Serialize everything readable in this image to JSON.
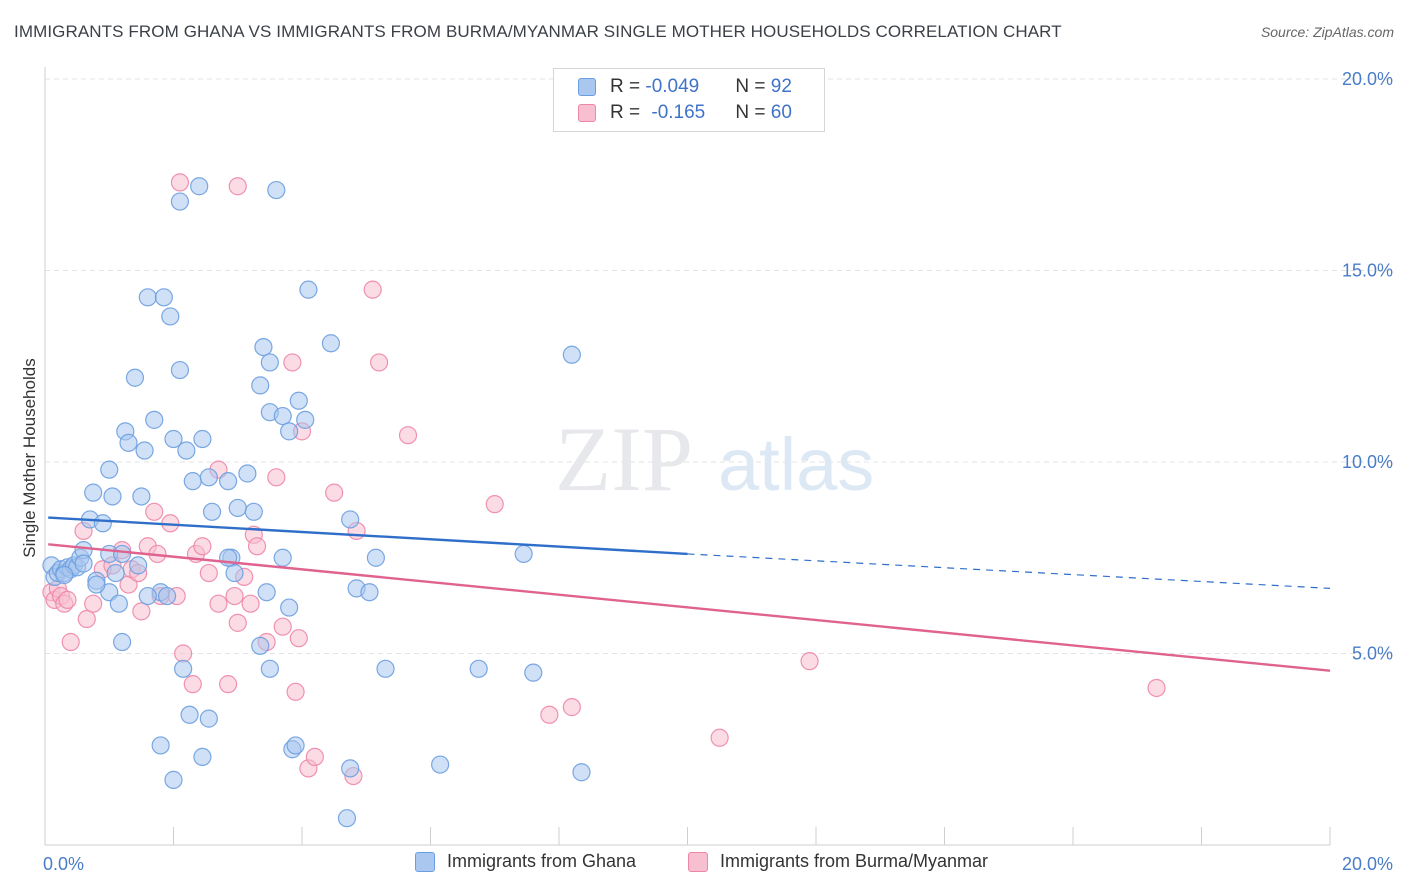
{
  "title": "IMMIGRANTS FROM GHANA VS IMMIGRANTS FROM BURMA/MYANMAR SINGLE MOTHER HOUSEHOLDS CORRELATION CHART",
  "source": "Source: ZipAtlas.com",
  "watermark": {
    "zip": "ZIP",
    "atlas": "atlas"
  },
  "legend_top": [
    {
      "r_label": "R = ",
      "r_value": "-0.049",
      "n_label": "N = ",
      "n_value": "92"
    },
    {
      "r_label": "R = ",
      "r_value": "-0.165",
      "n_label": "N = ",
      "n_value": "60"
    }
  ],
  "chart_data": {
    "type": "scatter",
    "title": "IMMIGRANTS FROM GHANA VS IMMIGRANTS FROM BURMA/MYANMAR SINGLE MOTHER HOUSEHOLDS CORRELATION CHART",
    "xlabel": "",
    "ylabel": "Single Mother Households",
    "xlim": [
      0,
      20
    ],
    "ylim": [
      0,
      20
    ],
    "x_tick_labels": [
      "0.0%",
      "20.0%"
    ],
    "y_ticks": [
      5,
      10,
      15,
      20
    ],
    "y_tick_labels": [
      "5.0%",
      "10.0%",
      "15.0%",
      "20.0%"
    ],
    "grid": true,
    "legend_position": "bottom",
    "series": [
      {
        "name": "Immigrants from Ghana",
        "color": "#6b9ee0",
        "fill": "#a9c7ef",
        "r": -0.049,
        "n": 92,
        "trend": {
          "x0": 0.05,
          "y0": 8.55,
          "x1": 10.0,
          "y1": 7.6,
          "dashed_to_x": 20.0,
          "dashed_to_y": 6.7,
          "color": "#2f6fc9"
        },
        "points": [
          [
            0.1,
            7.3
          ],
          [
            0.15,
            7.0
          ],
          [
            0.2,
            7.1
          ],
          [
            0.25,
            7.2
          ],
          [
            0.3,
            7.1
          ],
          [
            0.35,
            7.25
          ],
          [
            0.4,
            7.2
          ],
          [
            0.45,
            7.3
          ],
          [
            0.5,
            7.25
          ],
          [
            0.55,
            7.5
          ],
          [
            0.6,
            7.7
          ],
          [
            0.7,
            8.5
          ],
          [
            0.8,
            6.9
          ],
          [
            0.9,
            8.4
          ],
          [
            1.0,
            7.6
          ],
          [
            0.75,
            9.2
          ],
          [
            1.0,
            9.8
          ],
          [
            1.05,
            9.1
          ],
          [
            1.1,
            7.1
          ],
          [
            1.2,
            7.6
          ],
          [
            1.25,
            10.8
          ],
          [
            1.3,
            10.5
          ],
          [
            1.4,
            12.2
          ],
          [
            1.5,
            9.1
          ],
          [
            1.55,
            10.3
          ],
          [
            1.6,
            14.3
          ],
          [
            1.7,
            11.1
          ],
          [
            1.8,
            6.6
          ],
          [
            1.9,
            6.5
          ],
          [
            2.0,
            10.6
          ],
          [
            1.85,
            14.3
          ],
          [
            1.95,
            13.8
          ],
          [
            2.1,
            12.4
          ],
          [
            2.2,
            10.3
          ],
          [
            2.3,
            9.5
          ],
          [
            2.45,
            10.6
          ],
          [
            2.55,
            9.6
          ],
          [
            2.6,
            8.7
          ],
          [
            2.85,
            9.5
          ],
          [
            2.9,
            7.5
          ],
          [
            3.0,
            8.8
          ],
          [
            3.15,
            9.7
          ],
          [
            3.25,
            8.7
          ],
          [
            3.35,
            12.0
          ],
          [
            3.4,
            13.0
          ],
          [
            3.5,
            11.3
          ],
          [
            3.7,
            11.2
          ],
          [
            3.8,
            10.8
          ],
          [
            3.95,
            11.6
          ],
          [
            4.05,
            11.1
          ],
          [
            4.1,
            14.5
          ],
          [
            4.45,
            13.1
          ],
          [
            4.75,
            8.5
          ],
          [
            5.15,
            7.5
          ],
          [
            5.3,
            4.6
          ],
          [
            2.1,
            16.8
          ],
          [
            2.4,
            17.2
          ],
          [
            3.6,
            17.1
          ],
          [
            3.5,
            12.6
          ],
          [
            1.2,
            5.3
          ],
          [
            1.0,
            6.6
          ],
          [
            0.8,
            6.8
          ],
          [
            1.15,
            6.3
          ],
          [
            1.6,
            6.5
          ],
          [
            2.15,
            4.6
          ],
          [
            2.25,
            3.4
          ],
          [
            2.55,
            3.3
          ],
          [
            1.8,
            2.6
          ],
          [
            2.0,
            1.7
          ],
          [
            2.45,
            2.3
          ],
          [
            3.35,
            5.2
          ],
          [
            3.8,
            6.2
          ],
          [
            3.5,
            4.6
          ],
          [
            3.85,
            2.5
          ],
          [
            3.9,
            2.6
          ],
          [
            4.7,
            0.7
          ],
          [
            4.75,
            2.0
          ],
          [
            4.85,
            6.7
          ],
          [
            5.05,
            6.6
          ],
          [
            6.15,
            2.1
          ],
          [
            6.75,
            4.6
          ],
          [
            7.45,
            7.6
          ],
          [
            7.6,
            4.5
          ],
          [
            8.2,
            12.8
          ],
          [
            8.35,
            1.9
          ],
          [
            3.7,
            7.5
          ],
          [
            3.45,
            6.6
          ],
          [
            2.95,
            7.1
          ],
          [
            2.85,
            7.5
          ],
          [
            1.45,
            7.3
          ],
          [
            0.3,
            7.05
          ],
          [
            0.6,
            7.35
          ]
        ]
      },
      {
        "name": "Immigrants from Burma/Myanmar",
        "color": "#ee86a8",
        "fill": "#f8bfd0",
        "r": -0.165,
        "n": 60,
        "trend": {
          "x0": 0.05,
          "y0": 7.85,
          "x1": 20.0,
          "y1": 4.55,
          "color": "#e0628f"
        },
        "points": [
          [
            0.1,
            6.6
          ],
          [
            0.15,
            6.4
          ],
          [
            0.2,
            6.7
          ],
          [
            0.25,
            6.5
          ],
          [
            0.3,
            6.3
          ],
          [
            0.35,
            6.4
          ],
          [
            0.4,
            5.3
          ],
          [
            0.6,
            8.2
          ],
          [
            0.65,
            5.9
          ],
          [
            0.75,
            6.3
          ],
          [
            0.9,
            7.2
          ],
          [
            1.05,
            7.3
          ],
          [
            1.2,
            7.7
          ],
          [
            1.3,
            6.8
          ],
          [
            1.35,
            7.2
          ],
          [
            1.45,
            7.1
          ],
          [
            1.5,
            6.1
          ],
          [
            1.6,
            7.8
          ],
          [
            1.7,
            8.7
          ],
          [
            1.75,
            7.6
          ],
          [
            1.8,
            6.5
          ],
          [
            1.95,
            8.4
          ],
          [
            2.05,
            6.5
          ],
          [
            2.15,
            5.0
          ],
          [
            2.3,
            4.2
          ],
          [
            2.35,
            7.6
          ],
          [
            2.45,
            7.8
          ],
          [
            2.55,
            7.1
          ],
          [
            2.7,
            6.3
          ],
          [
            2.7,
            9.8
          ],
          [
            2.85,
            4.2
          ],
          [
            2.95,
            6.5
          ],
          [
            3.0,
            5.8
          ],
          [
            3.1,
            7.0
          ],
          [
            3.2,
            6.3
          ],
          [
            3.25,
            8.1
          ],
          [
            3.3,
            7.8
          ],
          [
            3.45,
            5.3
          ],
          [
            3.6,
            9.6
          ],
          [
            3.7,
            5.7
          ],
          [
            3.9,
            4.0
          ],
          [
            3.95,
            5.4
          ],
          [
            4.0,
            10.8
          ],
          [
            4.1,
            2.0
          ],
          [
            4.2,
            2.3
          ],
          [
            4.5,
            9.2
          ],
          [
            4.8,
            1.8
          ],
          [
            4.85,
            8.2
          ],
          [
            5.2,
            12.6
          ],
          [
            5.65,
            10.7
          ],
          [
            7.0,
            8.9
          ],
          [
            7.85,
            3.4
          ],
          [
            8.2,
            3.6
          ],
          [
            10.5,
            2.8
          ],
          [
            11.9,
            4.8
          ],
          [
            17.3,
            4.1
          ],
          [
            2.1,
            17.3
          ],
          [
            3.0,
            17.2
          ],
          [
            5.1,
            14.5
          ],
          [
            3.85,
            12.6
          ]
        ]
      }
    ]
  }
}
